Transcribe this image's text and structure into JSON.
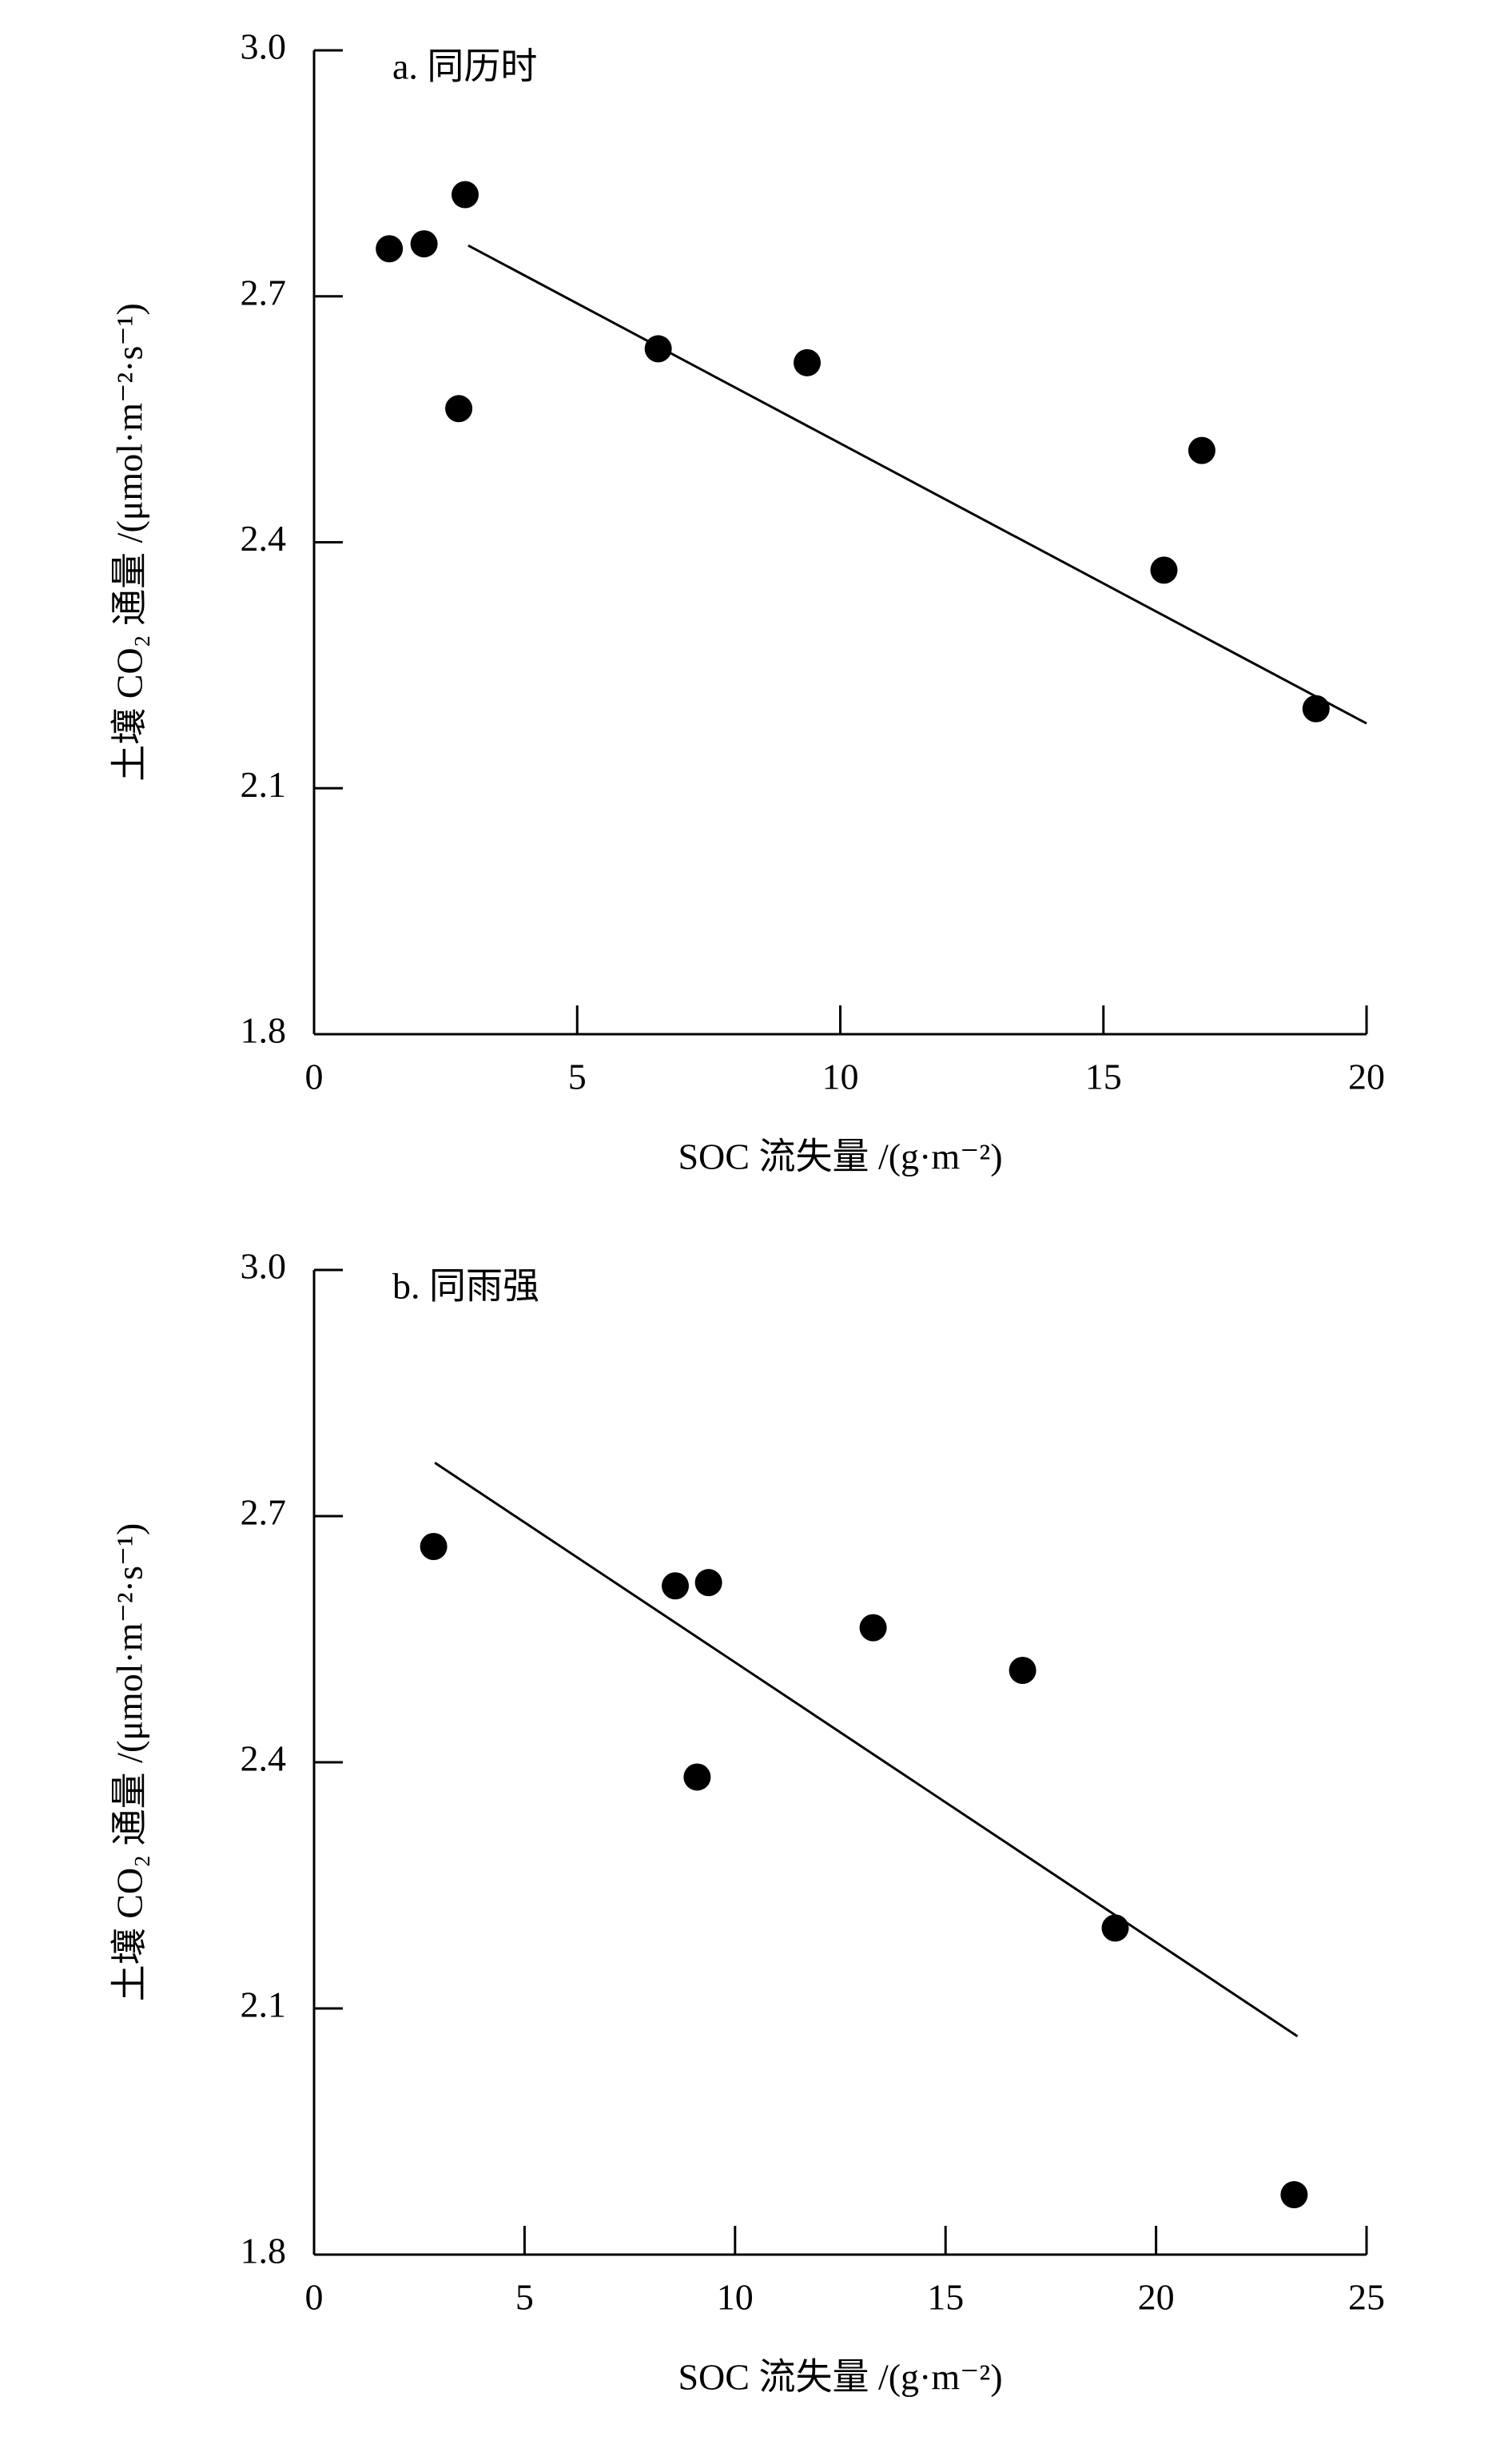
{
  "chart_data": [
    {
      "type": "scatter",
      "title": "a. 同历时",
      "x_label": "SOC 流失量 /(g·m⁻²)",
      "y_label": "土壤 CO₂ 通量 /(μmol·m⁻²·s⁻¹)",
      "x": [
        1.43,
        2.09,
        2.87,
        2.75,
        6.54,
        9.37,
        16.15,
        16.87,
        19.04
      ],
      "values": [
        2.758,
        2.764,
        2.824,
        2.563,
        2.636,
        2.619,
        2.366,
        2.512,
        2.197
      ],
      "color": "#000000",
      "trendline": {
        "x": [
          2.93,
          20
        ],
        "y": [
          2.762,
          2.179
        ]
      },
      "xlim": [
        0,
        20
      ],
      "xticks": [
        0,
        5,
        10,
        15,
        20
      ],
      "ylim": [
        1.8,
        3
      ],
      "yticks": [
        1.8,
        2.1,
        2.4,
        2.7,
        {
          "value": 3,
          "label": "3.0"
        }
      ]
    },
    {
      "type": "scatter",
      "title": "b. 同雨强",
      "x_label": "SOC 流失量 /(g·m⁻²)",
      "y_label": "土壤 CO₂ 通量 /(μmol·m⁻²·s⁻¹)",
      "x": [
        2.84,
        8.58,
        9.37,
        9.1,
        13.28,
        16.83,
        19.03,
        23.28
      ],
      "values": [
        2.663,
        2.615,
        2.619,
        2.382,
        2.564,
        2.512,
        2.198,
        1.873
      ],
      "color": "#000000",
      "trendline": {
        "x": [
          2.87,
          23.36
        ],
        "y": [
          2.765,
          2.066
        ]
      },
      "xlim": [
        0,
        25
      ],
      "xticks": [
        0,
        5,
        10,
        15,
        20,
        25
      ],
      "ylim": [
        1.8,
        3
      ],
      "yticks": [
        1.8,
        2.1,
        2.4,
        2.7,
        {
          "value": 3,
          "label": "3.0"
        }
      ]
    }
  ]
}
